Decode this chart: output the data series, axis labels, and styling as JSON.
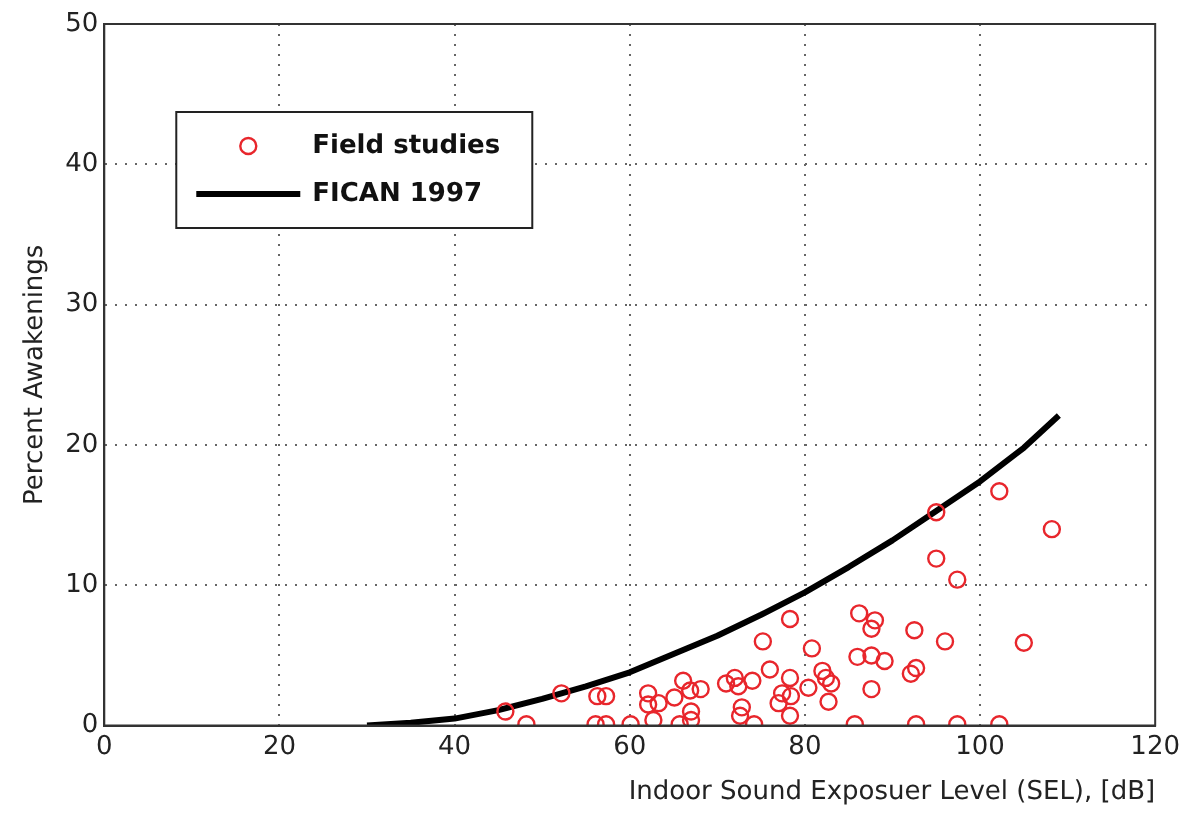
{
  "chart_data": {
    "type": "scatter",
    "xlabel": "Indoor Sound Exposuer Level (SEL), [dB]",
    "ylabel": "Percent Awakenings",
    "xlim": [
      0,
      120
    ],
    "xticks": [
      0,
      20,
      40,
      60,
      80,
      100,
      120
    ],
    "ylim": [
      0,
      50
    ],
    "yticks": [
      0,
      10,
      20,
      30,
      40,
      50
    ],
    "grid": true,
    "legend": "top left",
    "series": [
      {
        "name": "Field studies",
        "type": "scatter",
        "color": "#e8262c",
        "marker": "circle",
        "x": [
          45.8,
          48.2,
          52.2,
          56.3,
          57.3,
          56.1,
          57.3,
          60.1,
          62.1,
          62.1,
          63.3,
          62.7,
          65.1,
          66.1,
          66.9,
          68.1,
          65.7,
          67.0,
          67.0,
          71.0,
          72.0,
          72.4,
          74.0,
          72.8,
          72.6,
          74.2,
          75.2,
          76.0,
          77.0,
          77.4,
          78.3,
          78.3,
          78.4,
          78.3,
          80.4,
          80.8,
          82.0,
          82.4,
          83.0,
          82.7,
          85.7,
          86.0,
          86.2,
          88.0,
          87.6,
          87.6,
          89.1,
          87.6,
          92.1,
          92.7,
          92.5,
          92.7,
          95.0,
          95.0,
          96.0,
          97.4,
          97.4,
          102.2,
          102.2,
          105.0,
          108.2
        ],
        "values": [
          1.0,
          0.1,
          2.3,
          2.1,
          2.1,
          0.1,
          0.1,
          0.1,
          2.3,
          1.5,
          1.6,
          0.4,
          2.0,
          3.2,
          2.5,
          2.6,
          0.1,
          1.0,
          0.4,
          3.0,
          3.4,
          2.8,
          3.2,
          1.3,
          0.7,
          0.1,
          6.0,
          4.0,
          1.6,
          2.3,
          7.6,
          3.4,
          2.1,
          0.7,
          2.7,
          5.5,
          3.9,
          3.4,
          3.0,
          1.7,
          0.1,
          4.9,
          8.0,
          7.5,
          6.9,
          5.0,
          4.6,
          2.6,
          3.7,
          4.1,
          6.8,
          0.1,
          15.2,
          11.9,
          6.0,
          10.4,
          0.1,
          16.7,
          0.1,
          5.9,
          14.0
        ]
      },
      {
        "name": "FICAN 1997",
        "type": "line",
        "color": "#000000",
        "marker": "none",
        "line_style": "solid",
        "x": [
          30,
          35,
          40,
          45,
          50,
          55,
          60,
          65,
          70,
          75,
          80,
          85,
          90,
          95,
          100,
          105,
          109
        ],
        "values": [
          0,
          0.2,
          0.5,
          1.1,
          1.9,
          2.8,
          3.8,
          5.1,
          6.4,
          7.9,
          9.5,
          11.3,
          13.2,
          15.3,
          17.4,
          19.8,
          22.1
        ]
      }
    ]
  }
}
